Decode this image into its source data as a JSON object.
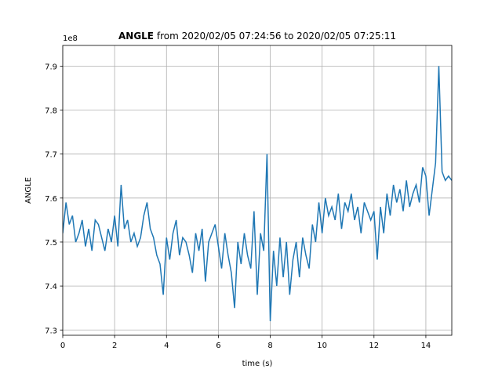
{
  "chart_data": {
    "type": "line",
    "title": [
      "ANGLE",
      "from 2020/02/05 07:24:56 to 2020/02/05 07:25:11"
    ],
    "xlabel": "time (s)",
    "ylabel": "ANGLE",
    "y_offset_label": "1e8",
    "x": [
      0,
      0.125,
      0.25,
      0.375,
      0.5,
      0.625,
      0.75,
      0.875,
      1,
      1.125,
      1.25,
      1.375,
      1.5,
      1.625,
      1.75,
      1.875,
      2,
      2.125,
      2.25,
      2.375,
      2.5,
      2.625,
      2.75,
      2.875,
      3,
      3.125,
      3.25,
      3.375,
      3.5,
      3.625,
      3.75,
      3.875,
      4,
      4.125,
      4.25,
      4.375,
      4.5,
      4.625,
      4.75,
      4.875,
      5,
      5.125,
      5.25,
      5.375,
      5.5,
      5.625,
      5.75,
      5.875,
      6,
      6.125,
      6.25,
      6.375,
      6.5,
      6.625,
      6.75,
      6.875,
      7,
      7.125,
      7.25,
      7.375,
      7.5,
      7.625,
      7.75,
      7.875,
      8,
      8.125,
      8.25,
      8.375,
      8.5,
      8.625,
      8.75,
      8.875,
      9,
      9.125,
      9.25,
      9.375,
      9.5,
      9.625,
      9.75,
      9.875,
      10,
      10.125,
      10.25,
      10.375,
      10.5,
      10.625,
      10.75,
      10.875,
      11,
      11.125,
      11.25,
      11.375,
      11.5,
      11.625,
      11.75,
      11.875,
      12,
      12.125,
      12.25,
      12.375,
      12.5,
      12.625,
      12.75,
      12.875,
      13,
      13.125,
      13.25,
      13.375,
      13.5,
      13.625,
      13.75,
      13.875,
      14,
      14.125,
      14.25,
      14.375,
      14.5,
      14.625,
      14.75,
      14.875,
      15
    ],
    "series": [
      {
        "name": "ANGLE",
        "color": "#1f77b4",
        "values": [
          7.52,
          7.59,
          7.54,
          7.56,
          7.5,
          7.52,
          7.55,
          7.49,
          7.53,
          7.48,
          7.55,
          7.54,
          7.51,
          7.48,
          7.53,
          7.5,
          7.56,
          7.49,
          7.63,
          7.53,
          7.55,
          7.5,
          7.52,
          7.49,
          7.51,
          7.56,
          7.59,
          7.53,
          7.51,
          7.47,
          7.45,
          7.38,
          7.51,
          7.46,
          7.52,
          7.55,
          7.47,
          7.51,
          7.5,
          7.47,
          7.43,
          7.52,
          7.48,
          7.53,
          7.41,
          7.5,
          7.52,
          7.54,
          7.49,
          7.44,
          7.52,
          7.47,
          7.43,
          7.35,
          7.5,
          7.45,
          7.52,
          7.47,
          7.44,
          7.57,
          7.38,
          7.52,
          7.48,
          7.7,
          7.32,
          7.48,
          7.4,
          7.51,
          7.42,
          7.5,
          7.38,
          7.46,
          7.5,
          7.42,
          7.51,
          7.47,
          7.44,
          7.54,
          7.5,
          7.59,
          7.52,
          7.6,
          7.56,
          7.58,
          7.55,
          7.61,
          7.53,
          7.59,
          7.57,
          7.61,
          7.55,
          7.58,
          7.52,
          7.59,
          7.57,
          7.55,
          7.57,
          7.46,
          7.58,
          7.52,
          7.61,
          7.56,
          7.63,
          7.59,
          7.62,
          7.57,
          7.64,
          7.58,
          7.61,
          7.63,
          7.59,
          7.67,
          7.65,
          7.56,
          7.62,
          7.68,
          7.9,
          7.66,
          7.64,
          7.65,
          7.64
        ]
      }
    ],
    "xlim": [
      0,
      15
    ],
    "ylim": [
      7.288,
      7.947
    ],
    "xticks": [
      0,
      2,
      4,
      6,
      8,
      10,
      12,
      14
    ],
    "yticks": [
      7.3,
      7.4,
      7.5,
      7.6,
      7.7,
      7.8,
      7.9
    ],
    "grid": true
  }
}
